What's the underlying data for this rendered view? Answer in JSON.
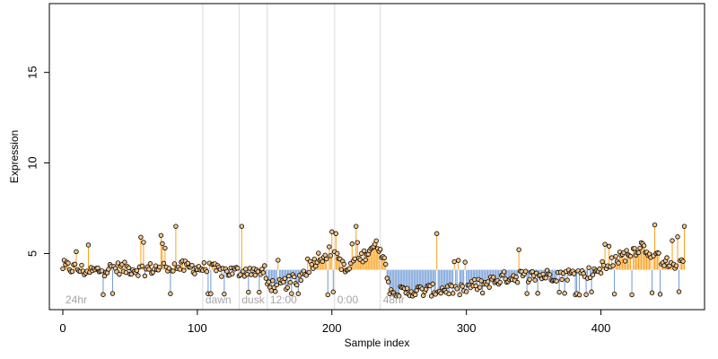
{
  "chart_data": {
    "type": "scatter",
    "title": "",
    "xlabel": "Sample index",
    "ylabel": "Expression",
    "xlim": [
      -10,
      477
    ],
    "ylim": [
      1.9,
      18.8
    ],
    "x_ticks": [
      0,
      100,
      200,
      300,
      400
    ],
    "y_ticks": [
      5,
      10,
      15
    ],
    "grid": false,
    "legend": "none",
    "baseline": 4.1,
    "colors": {
      "above_baseline": "#ff9f1a",
      "below_baseline": "#6f9ad6",
      "point_fill": "#f2c58c",
      "point_stroke": "#000000",
      "separator": "#d9d9d9",
      "region_label": "#a6a6a6"
    },
    "separators": [
      104,
      131,
      152,
      202,
      236
    ],
    "regions": [
      {
        "label": "24hr",
        "x": 2
      },
      {
        "label": "dawn",
        "x": 106
      },
      {
        "label": "dusk",
        "x": 133
      },
      {
        "label": "12:00",
        "x": 154
      },
      {
        "label": "0:00",
        "x": 204
      },
      {
        "label": "48hr",
        "x": 238
      }
    ],
    "anchors": [
      [
        0,
        4.3
      ],
      [
        20,
        4.0
      ],
      [
        40,
        4.2
      ],
      [
        60,
        4.1
      ],
      [
        80,
        4.3
      ],
      [
        100,
        4.2
      ],
      [
        104,
        4.2
      ],
      [
        120,
        4.0
      ],
      [
        131,
        4.0
      ],
      [
        140,
        4.1
      ],
      [
        150,
        4.0
      ],
      [
        152,
        3.3
      ],
      [
        160,
        3.2
      ],
      [
        175,
        3.6
      ],
      [
        190,
        4.8
      ],
      [
        202,
        5.2
      ],
      [
        210,
        4.0
      ],
      [
        220,
        4.6
      ],
      [
        230,
        5.4
      ],
      [
        236,
        5.4
      ],
      [
        245,
        2.8
      ],
      [
        260,
        2.9
      ],
      [
        280,
        3.0
      ],
      [
        300,
        3.1
      ],
      [
        330,
        3.7
      ],
      [
        360,
        3.8
      ],
      [
        390,
        3.9
      ],
      [
        405,
        4.4
      ],
      [
        420,
        5.0
      ],
      [
        430,
        5.4
      ],
      [
        440,
        5.0
      ],
      [
        450,
        4.4
      ],
      [
        460,
        4.6
      ]
    ],
    "spikes": [
      [
        10,
        5.1
      ],
      [
        58,
        5.9
      ],
      [
        73,
        6.0
      ],
      [
        84,
        6.5
      ],
      [
        133,
        6.5
      ],
      [
        200,
        6.2
      ],
      [
        218,
        6.5
      ],
      [
        278,
        6.1
      ],
      [
        462,
        6.5
      ],
      [
        76,
        5.3
      ],
      [
        182,
        4.7
      ],
      [
        406,
        5.4
      ],
      [
        430,
        5.6
      ]
    ],
    "n_points": 463
  }
}
